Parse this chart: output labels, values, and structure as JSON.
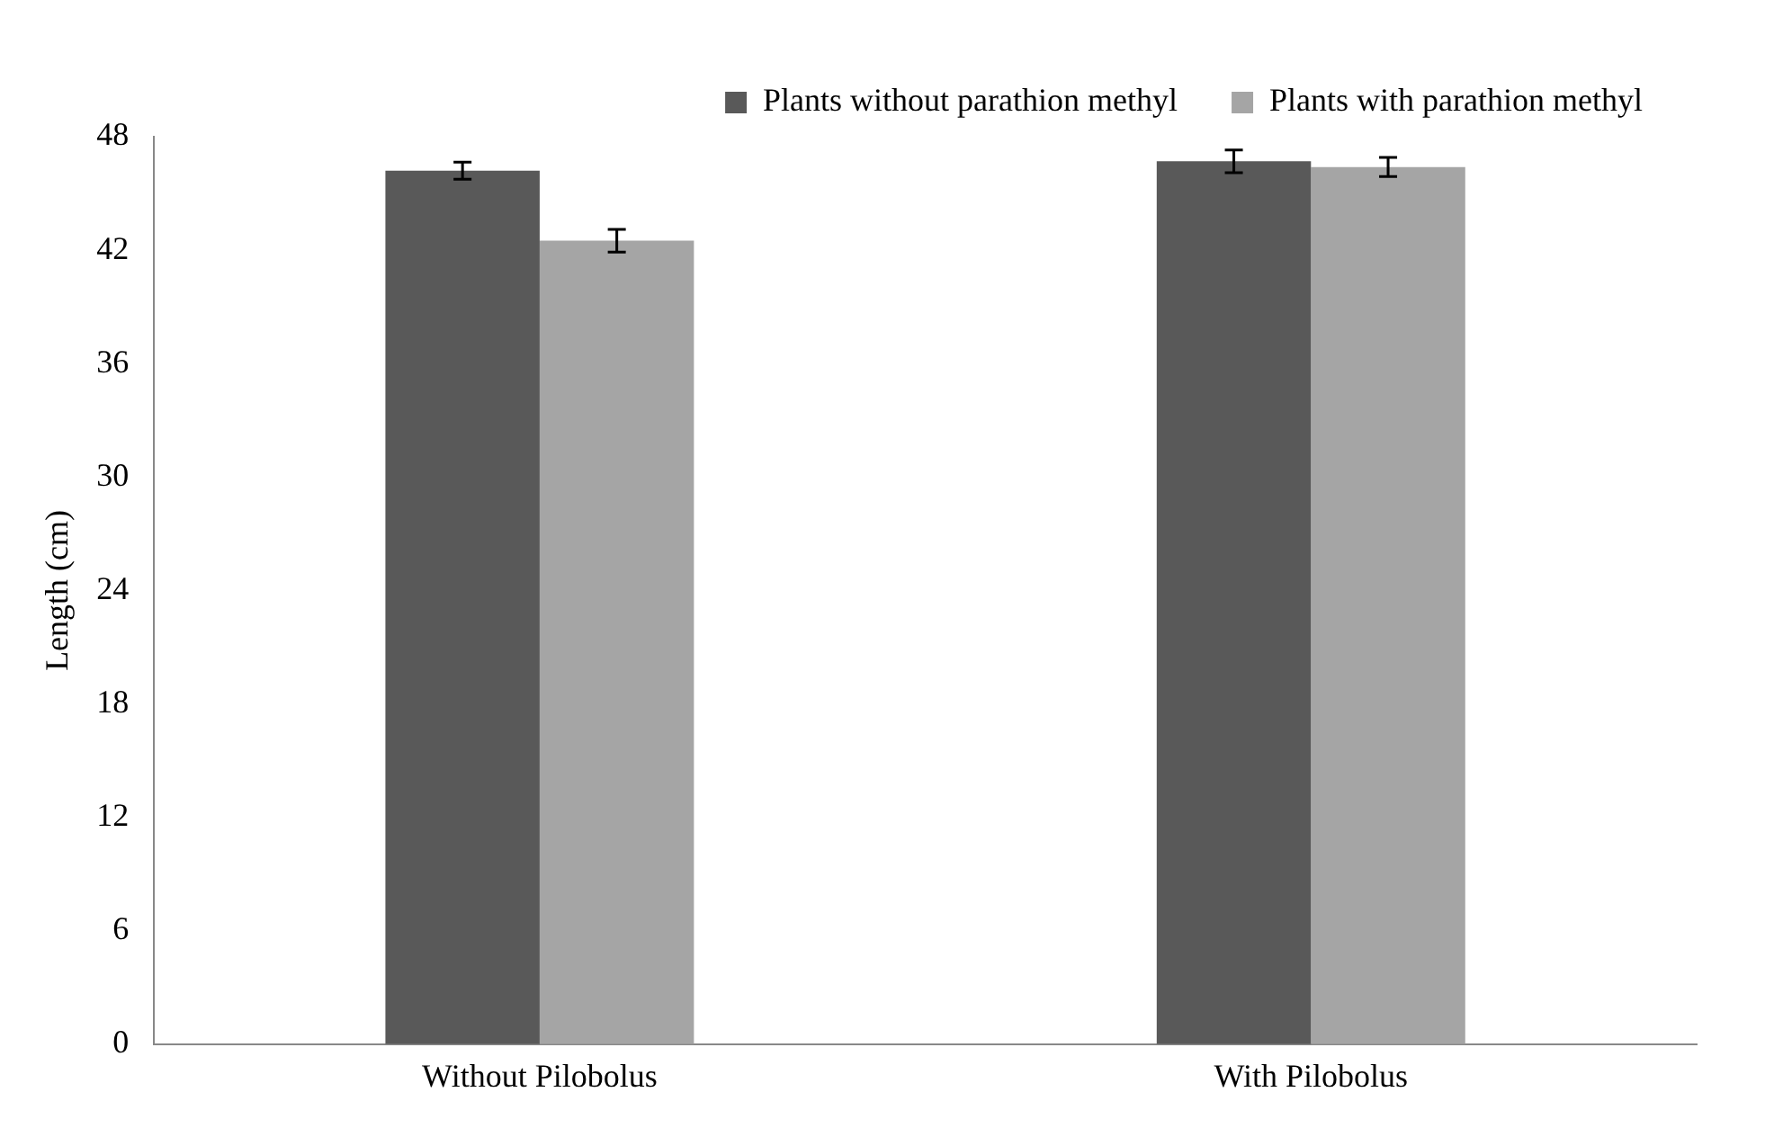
{
  "chart_data": {
    "type": "bar",
    "ylabel": "Length (cm)",
    "categories": [
      "Without Pilobolus",
      "With Pilobolus"
    ],
    "series": [
      {
        "name": "Plants without parathion methyl",
        "color": "#595959",
        "values": [
          46.2,
          46.7
        ],
        "errors": [
          0.45,
          0.6
        ]
      },
      {
        "name": "Plants with parathion methyl",
        "color": "#a5a5a5",
        "values": [
          42.5,
          46.4
        ],
        "errors": [
          0.6,
          0.5
        ]
      }
    ],
    "ylim": [
      0,
      48
    ],
    "yticks": [
      0,
      6,
      12,
      18,
      24,
      30,
      36,
      42,
      48
    ],
    "grid": false,
    "legend": "top right"
  }
}
